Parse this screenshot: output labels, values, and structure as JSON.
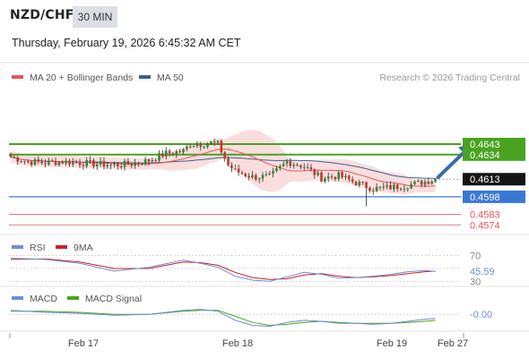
{
  "header": {
    "pair": "NZD/CHF",
    "timeframe": "30 MIN",
    "datetime": "Thursday, February 19, 2026 6:45:32 AM CET"
  },
  "colors": {
    "ma20": "#e8555a",
    "ma50": "#3d5f8e",
    "bollinger_fill": "#f9d6d6",
    "green": "#4aa320",
    "blue": "#3a78d6",
    "red": "#e8555a",
    "bull": "#2f8a2f",
    "bear": "#c0392b",
    "rsi": "#6d8fd6",
    "rsi_ma": "#cc2020",
    "macd": "#6d8fd6",
    "macd_signal": "#4aa320",
    "arrow": "#3b6aa8"
  },
  "chart_data": [
    {
      "type": "candlestick",
      "title": "NZD/CHF",
      "legend": [
        {
          "name": "MA 20 + Bollinger Bands",
          "color": "#e8555a"
        },
        {
          "name": "MA 50",
          "color": "#3d5f8e"
        }
      ],
      "watermark": "Research © 2026 Trading Central",
      "ylim": [
        0.45658,
        0.46896
      ],
      "x_ticks": [
        "Feb 17",
        "Feb 18",
        "Feb 19",
        "Feb 27"
      ],
      "close_path": [
        [
          0,
          0.4632
        ],
        [
          5,
          0.4628
        ],
        [
          10,
          0.4627
        ],
        [
          15,
          0.4628
        ],
        [
          20,
          0.4627
        ],
        [
          25,
          0.4626
        ],
        [
          30,
          0.4625
        ],
        [
          35,
          0.4626
        ],
        [
          40,
          0.4629
        ],
        [
          45,
          0.4635
        ],
        [
          50,
          0.4637
        ],
        [
          52,
          0.4643
        ],
        [
          55,
          0.4643
        ],
        [
          58,
          0.4644
        ],
        [
          60,
          0.4643
        ],
        [
          63,
          0.4625
        ],
        [
          65,
          0.462
        ],
        [
          70,
          0.4615
        ],
        [
          75,
          0.4615
        ],
        [
          80,
          0.4628
        ],
        [
          85,
          0.4624
        ],
        [
          90,
          0.4614
        ],
        [
          95,
          0.4616
        ],
        [
          100,
          0.461
        ],
        [
          105,
          0.4605
        ],
        [
          110,
          0.4606
        ],
        [
          113,
          0.4607
        ],
        [
          117,
          0.4609
        ],
        [
          120,
          0.4611
        ],
        [
          123,
          0.4613
        ]
      ],
      "low_wick": {
        "index": 103,
        "low": 0.459
      },
      "levels": [
        {
          "label": "0.4643",
          "value": 0.4643,
          "kind": "resistance",
          "color": "#4aa320"
        },
        {
          "label": "0.4634",
          "value": 0.4634,
          "kind": "resistance",
          "color": "#4aa320"
        },
        {
          "label": "0.4613",
          "value": 0.4613,
          "kind": "last",
          "color": "#111111"
        },
        {
          "label": "0.4598",
          "value": 0.4598,
          "kind": "pivot",
          "color": "#3a78d6"
        },
        {
          "label": "0.4583",
          "value": 0.4583,
          "kind": "support",
          "color": "#e8555a"
        },
        {
          "label": "0.4574",
          "value": 0.4574,
          "kind": "support",
          "color": "#e8555a"
        }
      ],
      "forecast_arrow": {
        "from": [
          123,
          0.4613
        ],
        "to": [
          133,
          0.4641
        ]
      }
    },
    {
      "type": "line",
      "title": "RSI",
      "legend": [
        {
          "name": "RSI",
          "color": "#6d8fd6"
        },
        {
          "name": "9MA",
          "color": "#cc2020"
        }
      ],
      "ylim": [
        25,
        75
      ],
      "levels": [
        70,
        50,
        30
      ],
      "tick_labels": [
        "70",
        "30"
      ],
      "value_label": "45.59",
      "x": [
        0,
        10,
        20,
        30,
        40,
        50,
        55,
        60,
        65,
        70,
        75,
        80,
        85,
        90,
        95,
        100,
        105,
        110,
        115,
        120,
        123
      ],
      "values": [
        66,
        64,
        58,
        46,
        52,
        63,
        58,
        52,
        38,
        32,
        30,
        37,
        44,
        41,
        35,
        36,
        38,
        41,
        45,
        47,
        45.59
      ],
      "ma_values": [
        64,
        65,
        60,
        50,
        50,
        60,
        59,
        55,
        44,
        36,
        33,
        34,
        40,
        42,
        38,
        36,
        37,
        39,
        42,
        45,
        46
      ]
    },
    {
      "type": "line",
      "title": "MACD",
      "legend": [
        {
          "name": "MACD",
          "color": "#6d8fd6"
        },
        {
          "name": "MACD Signal",
          "color": "#4aa320"
        }
      ],
      "ylim": [
        -0.0015,
        0.001
      ],
      "value_label": "-0.00",
      "x": [
        0,
        10,
        20,
        30,
        40,
        50,
        55,
        60,
        65,
        70,
        75,
        80,
        85,
        90,
        95,
        100,
        105,
        110,
        115,
        120,
        123
      ],
      "values": [
        0.0004,
        0.0002,
        0.0001,
        -0.0001,
        0.0,
        0.0004,
        0.0005,
        0.0003,
        -0.0006,
        -0.0011,
        -0.0012,
        -0.0008,
        -0.0006,
        -0.0007,
        -0.0009,
        -0.0009,
        -0.001,
        -0.0009,
        -0.0007,
        -0.0005,
        -0.0004
      ],
      "signal_values": [
        0.0003,
        0.0003,
        0.0002,
        0.0,
        0.0,
        0.0003,
        0.0004,
        0.0004,
        -0.0002,
        -0.0008,
        -0.0011,
        -0.001,
        -0.0008,
        -0.0007,
        -0.0008,
        -0.0009,
        -0.0009,
        -0.0009,
        -0.0008,
        -0.0007,
        -0.0006
      ]
    }
  ]
}
